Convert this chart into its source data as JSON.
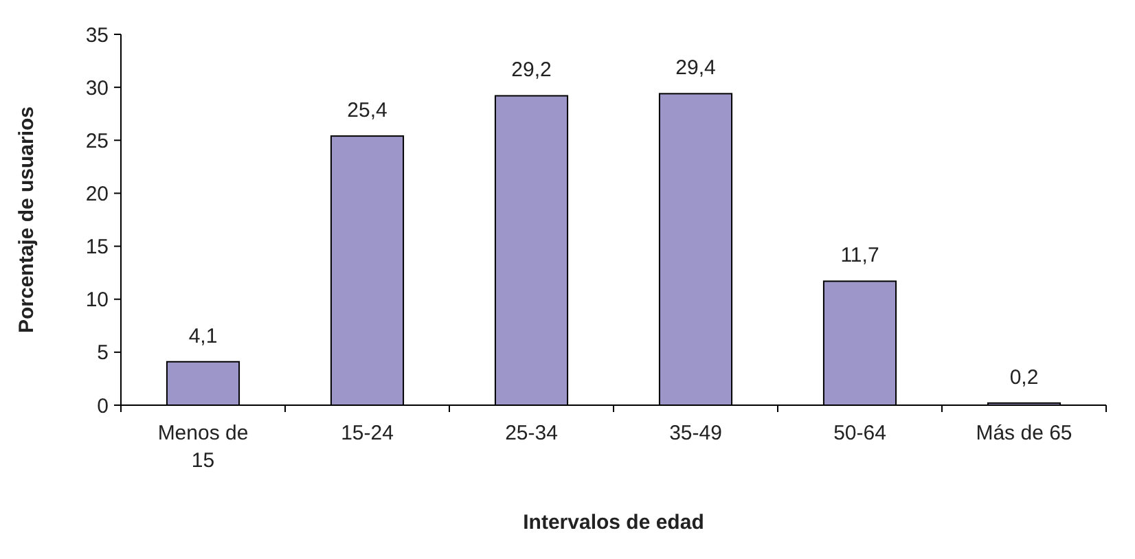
{
  "chart_data": {
    "type": "bar",
    "xlabel": "Intervalos de edad",
    "ylabel": "Porcentaje de usuarios",
    "categories": [
      "Menos de 15",
      "15-24",
      "25-34",
      "35-49",
      "50-64",
      "Más de 65"
    ],
    "values": [
      4.1,
      25.4,
      29.2,
      29.4,
      11.7,
      0.2
    ],
    "value_labels": [
      "4,1",
      "25,4",
      "29,2",
      "29,4",
      "11,7",
      "0,2"
    ],
    "color": "#9d97c9",
    "ylim": [
      0,
      35
    ],
    "yticks": [
      0,
      5,
      10,
      15,
      20,
      25,
      30,
      35
    ],
    "grid": false
  }
}
